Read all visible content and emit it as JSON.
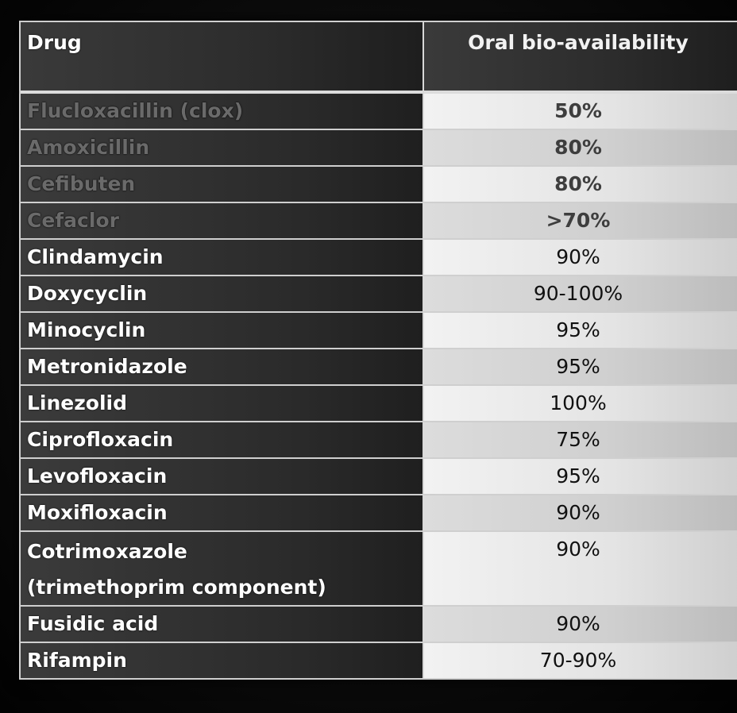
{
  "table": {
    "headers": {
      "drug": "Drug",
      "bioavailability": "Oral bio-availability"
    },
    "rows": [
      {
        "drug": "Flucloxacillin (clox)",
        "value": "50%",
        "dim": true
      },
      {
        "drug": "Amoxicillin",
        "value": "80%",
        "dim": true
      },
      {
        "drug": "Cefibuten",
        "value": "80%",
        "dim": true
      },
      {
        "drug": "Cefaclor",
        "value": ">70%",
        "dim": true
      },
      {
        "drug": "Clindamycin",
        "value": "90%"
      },
      {
        "drug": "Doxycyclin",
        "value": "90-100%"
      },
      {
        "drug": "Minocyclin",
        "value": "95%"
      },
      {
        "drug": "Metronidazole",
        "value": "95%"
      },
      {
        "drug": "Linezolid",
        "value": "100%"
      },
      {
        "drug": "Ciprofloxacin",
        "value": "75%"
      },
      {
        "drug": "Levofloxacin",
        "value": "95%"
      },
      {
        "drug": "Moxifloxacin",
        "value": "90%"
      },
      {
        "drug": "Cotrimoxazole",
        "drug_line2": "(trimethoprim component)",
        "value": "90%"
      },
      {
        "drug": "Fusidic acid",
        "value": "90%"
      },
      {
        "drug": "Rifampin",
        "value": "70-90%"
      }
    ]
  }
}
